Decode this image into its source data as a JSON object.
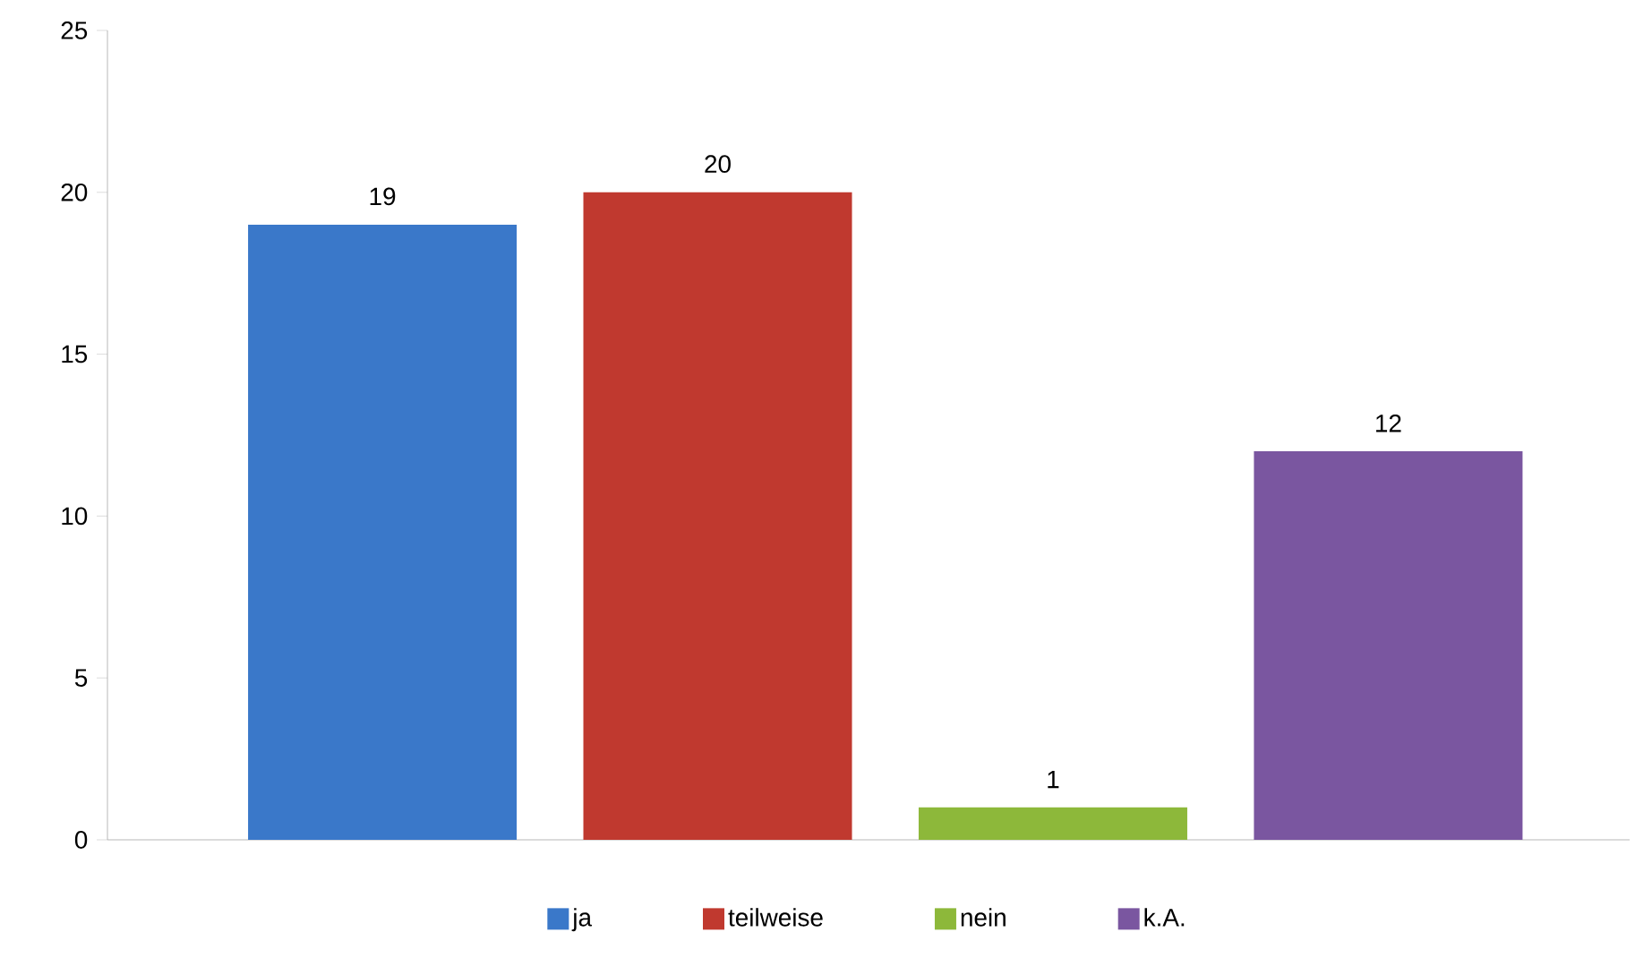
{
  "chart_data": {
    "type": "bar",
    "categories": [
      null,
      null,
      null,
      null
    ],
    "series": [
      {
        "name": "ja",
        "color": "#3a78c9",
        "values": [
          19,
          null,
          null,
          null
        ]
      },
      {
        "name": "teilweise",
        "color": "#c0392f",
        "values": [
          null,
          20,
          null,
          null
        ]
      },
      {
        "name": "nein",
        "color": "#8db83a",
        "values": [
          null,
          null,
          1,
          null
        ]
      },
      {
        "name": "k.A.",
        "color": "#7a56a0",
        "values": [
          null,
          null,
          null,
          12
        ]
      }
    ],
    "ylim": [
      0,
      25
    ],
    "yticks": [
      0,
      5,
      10,
      15,
      20,
      25
    ],
    "data_labels": true,
    "legend": "bottom",
    "grid": false
  }
}
